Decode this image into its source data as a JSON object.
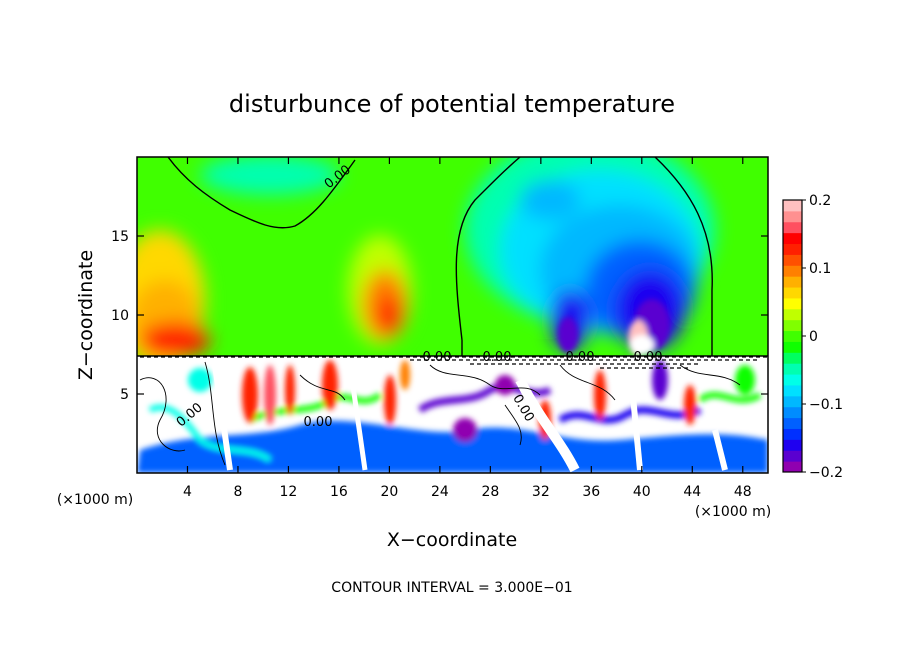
{
  "chart_data": {
    "type": "heatmap",
    "title": "disturbunce of potential temperature",
    "xlabel": "X−coordinate",
    "ylabel": "Z−coordinate",
    "x_unit_left": "(×1000 m)",
    "x_unit_right": "(×1000 m)",
    "xlim": [
      0,
      50
    ],
    "ylim": [
      0,
      20
    ],
    "x_ticks": [
      4,
      8,
      12,
      16,
      20,
      24,
      28,
      32,
      36,
      40,
      44,
      48
    ],
    "y_ticks": [
      5,
      10,
      15
    ],
    "colorbar": {
      "range": [
        -0.2,
        0.2
      ],
      "tick_values": [
        0.2,
        0.1,
        0,
        -0.1,
        -0.2
      ],
      "tick_labels": [
        "0.2",
        "0.1",
        "0",
        "−0.1",
        "−0.2"
      ],
      "colors": [
        "#9000b0",
        "#5a00d0",
        "#1f00f0",
        "#0030ff",
        "#0060ff",
        "#008cff",
        "#00b8ff",
        "#00e0ff",
        "#00ffe8",
        "#00ffb0",
        "#00ff60",
        "#10ff00",
        "#40ff00",
        "#80ff00",
        "#c0ff00",
        "#ffff00",
        "#ffd800",
        "#ffb000",
        "#ff8000",
        "#ff5000",
        "#ff2000",
        "#ff0000",
        "#ff5060",
        "#ff9090",
        "#ffc0c0"
      ]
    },
    "field_samples": {
      "upper_layer": [
        {
          "x": 3,
          "z": 12,
          "value": 0.11
        },
        {
          "x": 4,
          "z": 9,
          "value": 0.17
        },
        {
          "x": 19,
          "z": 10.5,
          "value": 0.14
        },
        {
          "x": 12,
          "z": 17,
          "value": 0.02
        },
        {
          "x": 34,
          "z": 14,
          "value": -0.05
        },
        {
          "x": 38,
          "z": 11,
          "value": -0.12
        },
        {
          "x": 40,
          "z": 9.5,
          "value": -0.19
        },
        {
          "x": 33,
          "z": 9.5,
          "value": -0.15
        },
        {
          "x": 46,
          "z": 12,
          "value": 0.04
        }
      ],
      "lower_layer": "mixed alternating positive (red/white) and negative (blue/purple) streaks, z = 0 to 7.3"
    },
    "contour_labels": [
      "0.00",
      "0.00",
      "0.00",
      "0.00",
      "0.00",
      "0.00",
      "0.00",
      "0.00"
    ],
    "annotation": "CONTOUR INTERVAL = 3.000E−01"
  }
}
